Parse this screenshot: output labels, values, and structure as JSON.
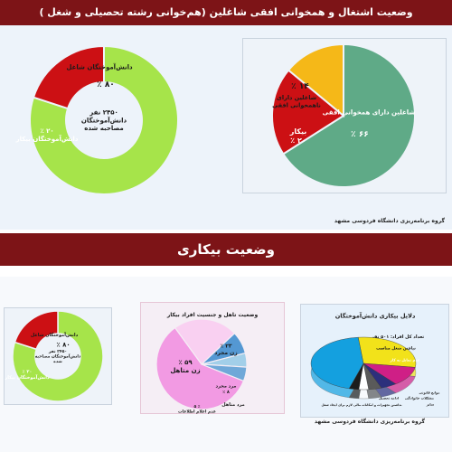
{
  "header": {
    "title": "وضعیت اشتغال و همخوانی افقی شاغلین (هم‌خوانی رشته تحصیلی و شغل )",
    "section_title": "وضعیت بیکاری",
    "footer": "گروه برنامه‌ریزی دانشگاه فردوسی مشهد"
  },
  "colors": {
    "banner": "#7d1417",
    "employed": "#a6e44a",
    "unemployed": "#cc1014",
    "horizontal_match": "#5faa87",
    "no_match": "#f5b818",
    "female_unmarried": "#f29ae3",
    "female_married": "#f9d0f1",
    "male_married": "#a2cfe9",
    "male_unmarried": "#5498d3"
  },
  "chart_data": [
    {
      "type": "pie",
      "variant": "donut",
      "slices": [
        {
          "label": "دانش‌آموختگان شاغل",
          "value": 80,
          "value_label": "۸۰ ٪",
          "color": "#a6e44a"
        },
        {
          "label": "دانش‌آموختگان بیکار",
          "value": 20,
          "value_label": "۲۰ ٪",
          "color": "#cc1014"
        }
      ],
      "center_text": [
        "۲۴۵۰ نفر",
        "دانش‌آموختگان",
        "مصاحبه شده"
      ]
    },
    {
      "type": "pie",
      "slices": [
        {
          "label": "شاغلین دارای همخوانی افقی",
          "value": 66,
          "value_label": "۶۶ ٪",
          "color": "#5faa87"
        },
        {
          "label": "بیکار",
          "value": 20,
          "value_label": "۲۰ ٪",
          "color": "#cc1014"
        },
        {
          "label": "شاغلین دارای ناهمخوانی افقی",
          "value": 14,
          "value_label": "۱۴ ٪",
          "color": "#f5b818"
        }
      ]
    },
    {
      "type": "pie",
      "variant": "donut",
      "slices": [
        {
          "label": "دانش‌آموختگان شاغل",
          "value": 80,
          "value_label": "۸۰ ٪",
          "color": "#a6e44a"
        },
        {
          "label": "دانش‌آموختگان بیکار",
          "value": 20,
          "value_label": "۲۰ ٪",
          "color": "#cc1014"
        }
      ],
      "center_text": [
        "۲۴۵۰ نفر",
        "دانش‌آموختگان مصاحبه",
        "شده"
      ]
    },
    {
      "type": "pie",
      "title": "وضعیت تاهل و جنسیت افراد بیکار",
      "slices": [
        {
          "label": "زن متاهل",
          "value": 59,
          "value_label": "۵۹ ٪",
          "color": "#f29ae3"
        },
        {
          "label": "زن مجرد",
          "value": 23,
          "value_label": "۲۳ ٪",
          "color": "#f9d0f1"
        },
        {
          "label": "مرد مجرد",
          "value": 8,
          "value_label": "۸ ٪",
          "color": "#5498d3"
        },
        {
          "label": "مرد متاهل",
          "value": 5,
          "value_label": "۵ ٪",
          "color": "#a2cfe9"
        },
        {
          "label": "عدم اعلام اطلاعات",
          "value": 5,
          "value_label": "۵ ٪",
          "color": "#6fa8d8"
        }
      ]
    },
    {
      "type": "pie",
      "variant": "3d",
      "title": "دلایل بیکاری دانش‌آموختگان",
      "subtitle": "تعداد کل افراد: ۵۰۱ نفر",
      "slices": [
        {
          "label": "نیافتن شغل مناسب",
          "value": 29,
          "color": "#f2e21a"
        },
        {
          "label": "عدم تمایل به کار",
          "value": 12,
          "color": "#cf1f86"
        },
        {
          "label": "ادامه تحصیل",
          "value": 5,
          "color": "#2c2f7c"
        },
        {
          "label": "مشکلات خانوادگی",
          "value": 4,
          "color": "#5a5a5a"
        },
        {
          "label": "موانع قانونی",
          "value": 3,
          "color": "#ffffff"
        },
        {
          "label": "سایر",
          "value": 3,
          "color": "#1c1c1c"
        },
        {
          "label": "نداشتن تجهیزات و امکانات مالی لازم برای ایجاد شغل",
          "value": 44,
          "color": "#14a0df"
        }
      ]
    }
  ]
}
